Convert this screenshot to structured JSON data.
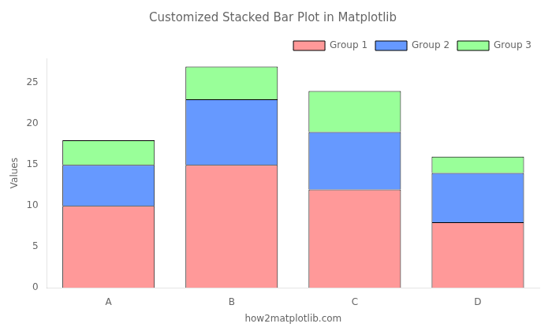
{
  "chart_data": {
    "type": "bar",
    "title": "Customized Stacked Bar Plot in Matplotlib",
    "xlabel": "how2matplotlib.com",
    "ylabel": "Values",
    "categories": [
      "A",
      "B",
      "C",
      "D"
    ],
    "series": [
      {
        "name": "Group 1",
        "color": "#FF9999",
        "values": [
          10,
          15,
          12,
          8
        ]
      },
      {
        "name": "Group 2",
        "color": "#6699FF",
        "values": [
          5,
          8,
          7,
          6
        ]
      },
      {
        "name": "Group 3",
        "color": "#99FF99",
        "values": [
          3,
          4,
          5,
          2
        ]
      }
    ],
    "stacked": true,
    "ylim": [
      0,
      28
    ],
    "yticks": [
      0,
      5,
      10,
      15,
      20,
      25
    ],
    "grid": false,
    "legend": "upper right"
  }
}
